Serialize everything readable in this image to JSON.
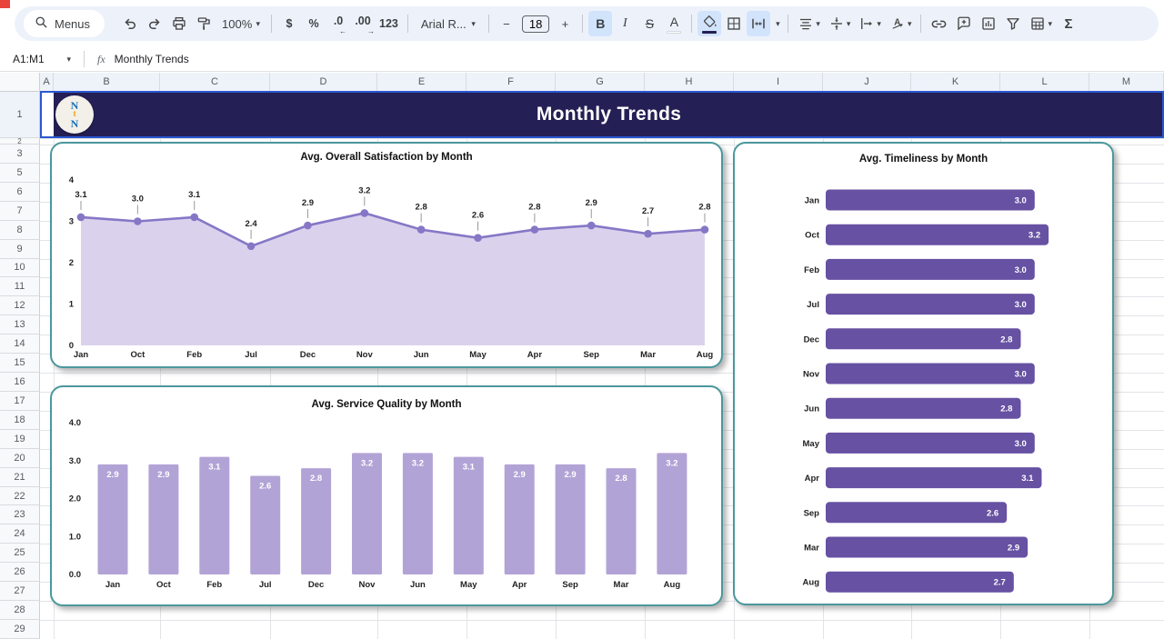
{
  "toolbar": {
    "menus_label": "Menus",
    "zoom_value": "100%",
    "currency_label": "$",
    "percent_label": "%",
    "decrease_decimal_label": ".0",
    "increase_decimal_label": ".00",
    "more_formats_label": "123",
    "font_name": "Arial R...",
    "decrease_font_label": "−",
    "font_size": "18",
    "increase_font_label": "+",
    "bold_label": "B",
    "italic_label": "I",
    "strikethrough_label": "S",
    "text_color_label": "A",
    "functions_label": "Σ"
  },
  "formula_bar": {
    "name_box_value": "A1:M1",
    "fx_label": "fx",
    "formula_value": "Monthly Trends"
  },
  "sheet": {
    "columns": [
      "A",
      "B",
      "C",
      "D",
      "E",
      "F",
      "G",
      "H",
      "I",
      "J",
      "K",
      "L",
      "M"
    ],
    "rows": [
      "1",
      "2",
      "3",
      "5",
      "6",
      "7",
      "8",
      "9",
      "10",
      "11",
      "12",
      "13",
      "14",
      "15",
      "16",
      "17",
      "18",
      "19",
      "20",
      "21",
      "22",
      "23",
      "24",
      "25",
      "26",
      "27",
      "28",
      "29"
    ],
    "banner": {
      "title": "Monthly Trends",
      "logo_top": "N",
      "logo_mid": "t",
      "logo_bottom": "N"
    }
  },
  "chart_data": [
    {
      "type": "area",
      "title": "Avg. Overall Satisfaction by Month",
      "categories": [
        "Jan",
        "Oct",
        "Feb",
        "Jul",
        "Dec",
        "Nov",
        "Jun",
        "May",
        "Apr",
        "Sep",
        "Mar",
        "Aug"
      ],
      "values": [
        3.1,
        3.0,
        3.1,
        2.4,
        2.9,
        3.2,
        2.8,
        2.6,
        2.8,
        2.9,
        2.7,
        2.8
      ],
      "ylim": [
        0,
        4
      ],
      "yticks": [
        "0",
        "1",
        "2",
        "3",
        "4"
      ],
      "grid": false,
      "legend": "none",
      "line_color": "#8677c6",
      "fill_color": "#dad2ed"
    },
    {
      "type": "bar",
      "title": "Avg. Service Quality by Month",
      "categories": [
        "Jan",
        "Oct",
        "Feb",
        "Jul",
        "Dec",
        "Nov",
        "Jun",
        "May",
        "Apr",
        "Sep",
        "Mar",
        "Aug"
      ],
      "values": [
        2.9,
        2.9,
        3.1,
        2.6,
        2.8,
        3.2,
        3.2,
        3.1,
        2.9,
        2.9,
        2.8,
        3.2
      ],
      "ylim": [
        0,
        4
      ],
      "yticks": [
        "0.0",
        "1.0",
        "2.0",
        "3.0",
        "4.0"
      ],
      "grid": false,
      "legend": "none",
      "bar_color": "#b2a3d6"
    },
    {
      "type": "bar-h",
      "title": "Avg. Timeliness by Month",
      "categories": [
        "Jan",
        "Oct",
        "Feb",
        "Jul",
        "Dec",
        "Nov",
        "Jun",
        "May",
        "Apr",
        "Sep",
        "Mar",
        "Aug"
      ],
      "values": [
        3.0,
        3.2,
        3.0,
        3.0,
        2.8,
        3.0,
        2.8,
        3.0,
        3.1,
        2.6,
        2.9,
        2.7
      ],
      "xlim": [
        0,
        3.35
      ],
      "grid": false,
      "legend": "none",
      "bar_color": "#6651a3"
    }
  ],
  "colors": {
    "banner_bg": "#241f54",
    "selection_blue": "#2b57d0",
    "card_border": "#4b989c",
    "toolbar_bg": "#edf2fa",
    "button_highlight": "#d2e3fc",
    "line_series": "#8677c6",
    "area_fill": "#dad2ed",
    "light_bar": "#b2a3d6",
    "dark_bar": "#6651a3"
  }
}
